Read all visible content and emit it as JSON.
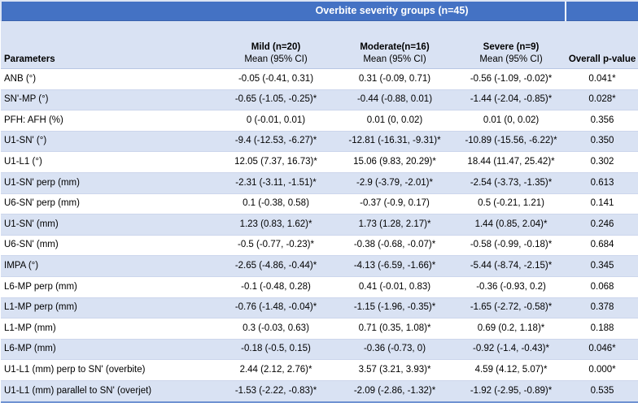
{
  "title": "Overbite severity groups (n=45)",
  "columns": {
    "parameters_label": "Parameters",
    "groups": [
      {
        "name": "Mild (n=20)",
        "subtitle": "Mean (95% CI)"
      },
      {
        "name": "Moderate(n=16)",
        "subtitle": "Mean (95% CI)"
      },
      {
        "name": "Severe (n=9)",
        "subtitle": "Mean (95% CI)"
      }
    ],
    "pvalue_label": "Overall p-value"
  },
  "rows": [
    {
      "parameter": "ANB (°)",
      "mild": "-0.05 (-0.41, 0.31)",
      "moderate": "0.31 (-0.09, 0.71)",
      "severe": "-0.56 (-1.09, -0.02)*",
      "p": "0.041*"
    },
    {
      "parameter": "SN'-MP (°)",
      "mild": "-0.65 (-1.05, -0.25)*",
      "moderate": "-0.44 (-0.88, 0.01)",
      "severe": "-1.44 (-2.04, -0.85)*",
      "p": "0.028*"
    },
    {
      "parameter": "PFH: AFH (%)",
      "mild": "0 (-0.01, 0.01)",
      "moderate": "0.01 (0, 0.02)",
      "severe": "0.01 (0, 0.02)",
      "p": "0.356"
    },
    {
      "parameter": "U1-SN' (°)",
      "mild": "-9.4 (-12.53, -6.27)*",
      "moderate": "-12.81 (-16.31, -9.31)*",
      "severe": "-10.89 (-15.56, -6.22)*",
      "p": "0.350"
    },
    {
      "parameter": "U1-L1 (°)",
      "mild": "12.05 (7.37, 16.73)*",
      "moderate": "15.06 (9.83, 20.29)*",
      "severe": "18.44 (11.47, 25.42)*",
      "p": "0.302"
    },
    {
      "parameter": "U1-SN' perp (mm)",
      "mild": "-2.31 (-3.11, -1.51)*",
      "moderate": "-2.9 (-3.79, -2.01)*",
      "severe": "-2.54 (-3.73, -1.35)*",
      "p": "0.613"
    },
    {
      "parameter": "U6-SN' perp (mm)",
      "mild": "0.1 (-0.38, 0.58)",
      "moderate": "-0.37 (-0.9, 0.17)",
      "severe": "0.5 (-0.21, 1.21)",
      "p": "0.141"
    },
    {
      "parameter": "U1-SN' (mm)",
      "mild": "1.23 (0.83, 1.62)*",
      "moderate": "1.73 (1.28, 2.17)*",
      "severe": "1.44 (0.85, 2.04)*",
      "p": "0.246"
    },
    {
      "parameter": "U6-SN' (mm)",
      "mild": "-0.5 (-0.77, -0.23)*",
      "moderate": "-0.38 (-0.68, -0.07)*",
      "severe": "-0.58 (-0.99, -0.18)*",
      "p": "0.684"
    },
    {
      "parameter": "IMPA (°)",
      "mild": "-2.65 (-4.86, -0.44)*",
      "moderate": "-4.13 (-6.59, -1.66)*",
      "severe": "-5.44 (-8.74, -2.15)*",
      "p": "0.345"
    },
    {
      "parameter": "L6-MP perp (mm)",
      "mild": "-0.1 (-0.48, 0.28)",
      "moderate": "0.41 (-0.01, 0.83)",
      "severe": "-0.36 (-0.93, 0.2)",
      "p": "0.068"
    },
    {
      "parameter": "L1-MP perp (mm)",
      "mild": "-0.76 (-1.48, -0.04)*",
      "moderate": "-1.15 (-1.96, -0.35)*",
      "severe": "-1.65 (-2.72, -0.58)*",
      "p": "0.378"
    },
    {
      "parameter": "L1-MP (mm)",
      "mild": "0.3 (-0.03, 0.63)",
      "moderate": "0.71 (0.35, 1.08)*",
      "severe": "0.69 (0.2, 1.18)*",
      "p": "0.188"
    },
    {
      "parameter": "L6-MP (mm)",
      "mild": "-0.18 (-0.5, 0.15)",
      "moderate": "-0.36 (-0.73, 0)",
      "severe": "-0.92 (-1.4, -0.43)*",
      "p": "0.046*"
    },
    {
      "parameter": "U1-L1 (mm) perp to SN' (overbite)",
      "mild": "2.44 (2.12, 2.76)*",
      "moderate": "3.57 (3.21, 3.93)*",
      "severe": "4.59 (4.12, 5.07)*",
      "p": "0.000*"
    },
    {
      "parameter": "U1-L1 (mm) parallel to SN' (overjet)",
      "mild": "-1.53 (-2.22, -0.83)*",
      "moderate": "-2.09 (-2.86, -1.32)*",
      "severe": "-1.92 (-2.95, -0.89)*",
      "p": "0.535"
    }
  ],
  "colors": {
    "header_blue": "#4472C4",
    "band_light_blue": "#D9E2F3",
    "row_white": "#FFFFFF",
    "row_border": "#CCD6EC",
    "header_border": "#B9C7E3",
    "bottom_border": "#6F92D2",
    "text": "#000000",
    "header_text": "#FFFFFF"
  }
}
